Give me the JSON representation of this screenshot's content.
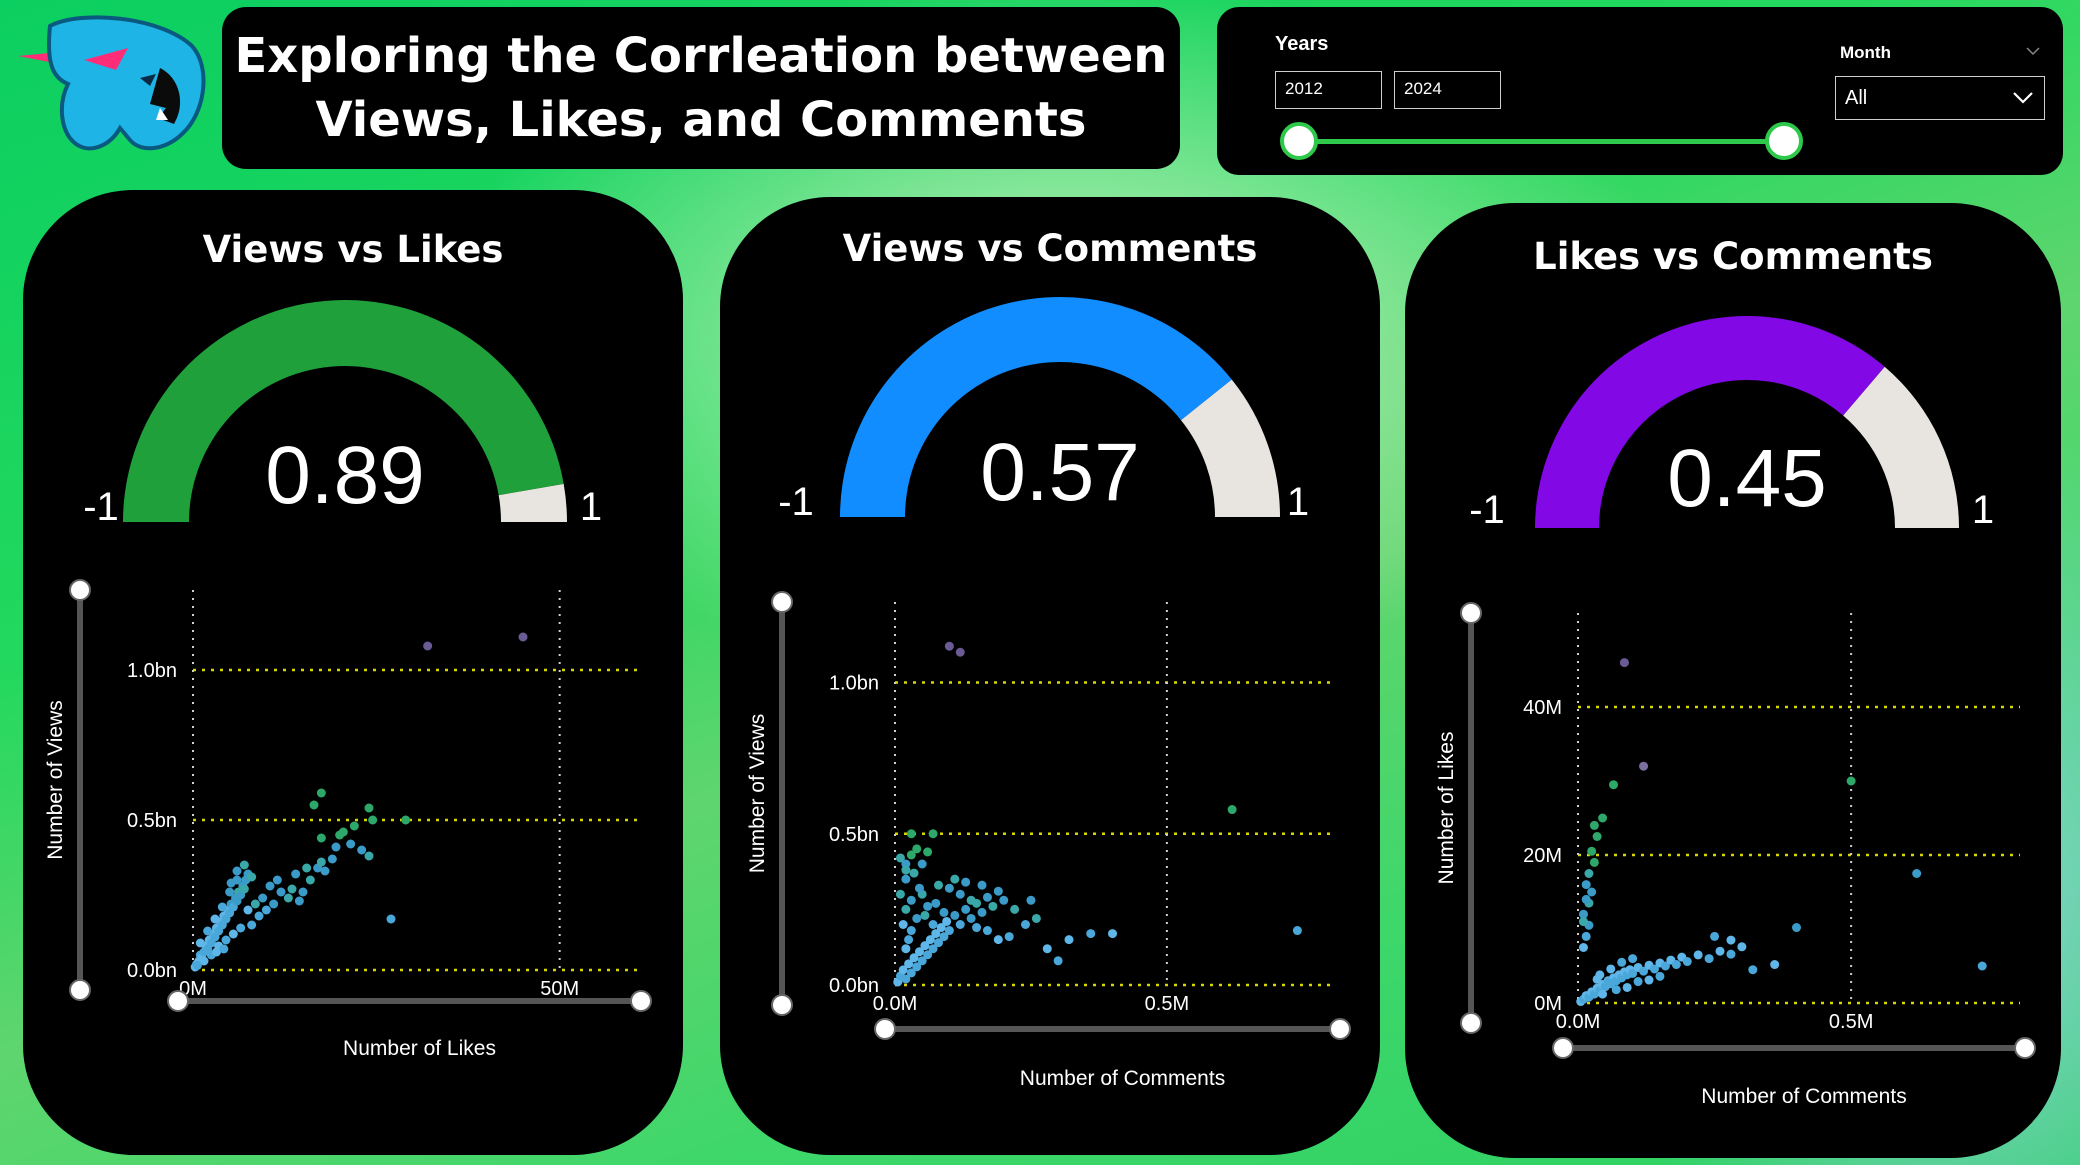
{
  "header": {
    "title_line1": "Exploring the Corrleation between",
    "title_line2": "Views, Likes, and Comments"
  },
  "filters": {
    "years_label": "Years",
    "year_from": "2012",
    "year_to": "2024",
    "month_label": "Month",
    "month_value": "All"
  },
  "colors": {
    "gauge_views_likes": "#1fa03a",
    "gauge_views_comments": "#118dff",
    "gauge_likes_comments": "#8208e6",
    "gauge_remainder": "#e8e4df",
    "gridline": "#d8d800"
  },
  "chart_data": [
    {
      "type": "gauge",
      "title": "Views vs Likes",
      "value": 0.89,
      "value_label": "0.89",
      "min": -1,
      "max": 1,
      "min_label": "-1",
      "max_label": "1"
    },
    {
      "type": "scatter",
      "xlabel": "Number of Likes",
      "ylabel": "Number of Views",
      "xlim": [
        0,
        60
      ],
      "ylim": [
        0,
        1.2
      ],
      "x_ticks": [
        {
          "v": 0,
          "label": "0M"
        },
        {
          "v": 50,
          "label": "50M"
        }
      ],
      "y_ticks": [
        {
          "v": 0,
          "label": "0.0bn"
        },
        {
          "v": 0.5,
          "label": "0.5bn"
        },
        {
          "v": 1.0,
          "label": "1.0bn"
        }
      ],
      "grid": true,
      "points": [
        [
          0.3,
          0.01
        ],
        [
          0.5,
          0.02
        ],
        [
          0.8,
          0.03
        ],
        [
          1.0,
          0.05
        ],
        [
          1.2,
          0.04
        ],
        [
          1.5,
          0.06
        ],
        [
          1.8,
          0.08
        ],
        [
          2.0,
          0.07
        ],
        [
          2.2,
          0.1
        ],
        [
          2.5,
          0.09
        ],
        [
          2.8,
          0.12
        ],
        [
          3.0,
          0.11
        ],
        [
          3.2,
          0.14
        ],
        [
          3.5,
          0.13
        ],
        [
          3.8,
          0.16
        ],
        [
          4.0,
          0.15
        ],
        [
          4.2,
          0.18
        ],
        [
          4.5,
          0.17
        ],
        [
          4.8,
          0.2
        ],
        [
          5.0,
          0.19
        ],
        [
          5.2,
          0.22
        ],
        [
          5.5,
          0.21
        ],
        [
          5.8,
          0.24
        ],
        [
          6.0,
          0.23
        ],
        [
          6.2,
          0.26
        ],
        [
          6.5,
          0.25
        ],
        [
          6.8,
          0.28
        ],
        [
          7.0,
          0.27
        ],
        [
          7.2,
          0.3
        ],
        [
          7.5,
          0.32
        ],
        [
          1.0,
          0.09
        ],
        [
          2.0,
          0.13
        ],
        [
          3.0,
          0.17
        ],
        [
          4.0,
          0.21
        ],
        [
          5.0,
          0.26
        ],
        [
          6.0,
          0.3
        ],
        [
          3.5,
          0.08
        ],
        [
          4.5,
          0.1
        ],
        [
          5.5,
          0.12
        ],
        [
          6.5,
          0.14
        ],
        [
          7.5,
          0.2
        ],
        [
          8.0,
          0.15
        ],
        [
          8.5,
          0.22
        ],
        [
          9.0,
          0.18
        ],
        [
          9.5,
          0.24
        ],
        [
          10.0,
          0.2
        ],
        [
          11.0,
          0.22
        ],
        [
          12.0,
          0.26
        ],
        [
          13.0,
          0.24
        ],
        [
          2.5,
          0.05
        ],
        [
          1.5,
          0.03
        ],
        [
          0.6,
          0.015
        ],
        [
          3.2,
          0.06
        ],
        [
          4.2,
          0.07
        ],
        [
          7.0,
          0.35
        ],
        [
          6.0,
          0.33
        ],
        [
          5.2,
          0.29
        ],
        [
          8.0,
          0.31
        ],
        [
          10.5,
          0.28
        ],
        [
          11.5,
          0.3
        ],
        [
          13.5,
          0.27
        ],
        [
          14.0,
          0.32
        ],
        [
          15.0,
          0.26
        ],
        [
          16.0,
          0.3
        ],
        [
          17.0,
          0.34
        ],
        [
          14.5,
          0.23
        ],
        [
          17.5,
          0.36
        ],
        [
          18.0,
          0.33
        ],
        [
          19.5,
          0.41
        ],
        [
          20.0,
          0.45
        ],
        [
          21.5,
          0.42
        ],
        [
          23.0,
          0.4
        ],
        [
          24.0,
          0.38
        ],
        [
          22.0,
          0.48
        ],
        [
          24.5,
          0.5
        ],
        [
          17.5,
          0.44
        ],
        [
          16.5,
          0.55
        ],
        [
          20.5,
          0.46
        ],
        [
          15.5,
          0.34
        ],
        [
          19.0,
          0.37
        ],
        [
          17.5,
          0.59
        ],
        [
          24.0,
          0.54
        ],
        [
          29.0,
          0.5
        ],
        [
          27.0,
          0.17
        ],
        [
          32.0,
          1.08
        ],
        [
          45.0,
          1.11
        ]
      ],
      "highlight_points": [
        [
          32.0,
          1.08
        ],
        [
          45.0,
          1.11
        ]
      ]
    },
    {
      "type": "gauge",
      "title": "Views vs Comments",
      "value": 0.57,
      "value_label": "0.57",
      "min": -1,
      "max": 1,
      "min_label": "-1",
      "max_label": "1"
    },
    {
      "type": "scatter",
      "xlabel": "Number of Comments",
      "ylabel": "Number of Views",
      "xlim": [
        0,
        0.8
      ],
      "ylim": [
        0,
        1.2
      ],
      "x_ticks": [
        {
          "v": 0,
          "label": "0.0M"
        },
        {
          "v": 0.5,
          "label": "0.5M"
        }
      ],
      "y_ticks": [
        {
          "v": 0,
          "label": "0.0bn"
        },
        {
          "v": 0.5,
          "label": "0.5bn"
        },
        {
          "v": 1.0,
          "label": "1.0bn"
        }
      ],
      "grid": true,
      "points": [
        [
          0.005,
          0.01
        ],
        [
          0.01,
          0.03
        ],
        [
          0.015,
          0.05
        ],
        [
          0.02,
          0.02
        ],
        [
          0.025,
          0.07
        ],
        [
          0.03,
          0.04
        ],
        [
          0.035,
          0.09
        ],
        [
          0.04,
          0.06
        ],
        [
          0.045,
          0.11
        ],
        [
          0.05,
          0.08
        ],
        [
          0.055,
          0.13
        ],
        [
          0.06,
          0.1
        ],
        [
          0.065,
          0.15
        ],
        [
          0.07,
          0.12
        ],
        [
          0.075,
          0.17
        ],
        [
          0.08,
          0.14
        ],
        [
          0.085,
          0.19
        ],
        [
          0.09,
          0.16
        ],
        [
          0.095,
          0.21
        ],
        [
          0.1,
          0.18
        ],
        [
          0.11,
          0.23
        ],
        [
          0.12,
          0.2
        ],
        [
          0.13,
          0.25
        ],
        [
          0.14,
          0.22
        ],
        [
          0.15,
          0.27
        ],
        [
          0.16,
          0.24
        ],
        [
          0.17,
          0.29
        ],
        [
          0.18,
          0.26
        ],
        [
          0.19,
          0.31
        ],
        [
          0.2,
          0.28
        ],
        [
          0.02,
          0.12
        ],
        [
          0.03,
          0.18
        ],
        [
          0.04,
          0.22
        ],
        [
          0.05,
          0.3
        ],
        [
          0.06,
          0.26
        ],
        [
          0.07,
          0.2
        ],
        [
          0.08,
          0.33
        ],
        [
          0.09,
          0.24
        ],
        [
          0.1,
          0.32
        ],
        [
          0.11,
          0.35
        ],
        [
          0.12,
          0.3
        ],
        [
          0.13,
          0.34
        ],
        [
          0.14,
          0.28
        ],
        [
          0.15,
          0.19
        ],
        [
          0.16,
          0.33
        ],
        [
          0.17,
          0.18
        ],
        [
          0.19,
          0.15
        ],
        [
          0.21,
          0.16
        ],
        [
          0.22,
          0.25
        ],
        [
          0.24,
          0.2
        ],
        [
          0.25,
          0.28
        ],
        [
          0.26,
          0.22
        ],
        [
          0.28,
          0.12
        ],
        [
          0.3,
          0.08
        ],
        [
          0.32,
          0.15
        ],
        [
          0.36,
          0.17
        ],
        [
          0.4,
          0.17
        ],
        [
          0.02,
          0.25
        ],
        [
          0.015,
          0.2
        ],
        [
          0.025,
          0.15
        ],
        [
          0.01,
          0.3
        ],
        [
          0.02,
          0.35
        ],
        [
          0.03,
          0.28
        ],
        [
          0.01,
          0.42
        ],
        [
          0.02,
          0.4
        ],
        [
          0.03,
          0.43
        ],
        [
          0.04,
          0.45
        ],
        [
          0.05,
          0.4
        ],
        [
          0.06,
          0.44
        ],
        [
          0.035,
          0.37
        ],
        [
          0.03,
          0.5
        ],
        [
          0.07,
          0.5
        ],
        [
          0.02,
          0.38
        ],
        [
          0.045,
          0.32
        ],
        [
          0.62,
          0.58
        ],
        [
          0.74,
          0.18
        ],
        [
          0.1,
          1.12
        ],
        [
          0.12,
          1.1
        ],
        [
          0.055,
          0.23
        ],
        [
          0.075,
          0.27
        ]
      ],
      "highlight_points": [
        [
          0.1,
          1.12
        ],
        [
          0.12,
          1.1
        ]
      ]
    },
    {
      "type": "gauge",
      "title": "Likes vs Comments",
      "value": 0.45,
      "value_label": "0.45",
      "min": -1,
      "max": 1,
      "min_label": "-1",
      "max_label": "1"
    },
    {
      "type": "scatter",
      "xlabel": "Number of Comments",
      "ylabel": "Number of Likes",
      "xlim": [
        0,
        0.8
      ],
      "ylim": [
        0,
        50
      ],
      "x_ticks": [
        {
          "v": 0,
          "label": "0.0M"
        },
        {
          "v": 0.5,
          "label": "0.5M"
        }
      ],
      "y_ticks": [
        {
          "v": 0,
          "label": "0M"
        },
        {
          "v": 20,
          "label": "20M"
        },
        {
          "v": 40,
          "label": "40M"
        }
      ],
      "grid": true,
      "points": [
        [
          0.005,
          0.2
        ],
        [
          0.01,
          0.5
        ],
        [
          0.015,
          1.0
        ],
        [
          0.02,
          0.8
        ],
        [
          0.025,
          1.5
        ],
        [
          0.03,
          1.2
        ],
        [
          0.035,
          2.0
        ],
        [
          0.04,
          1.7
        ],
        [
          0.045,
          2.5
        ],
        [
          0.05,
          2.2
        ],
        [
          0.055,
          3.0
        ],
        [
          0.06,
          2.6
        ],
        [
          0.065,
          3.4
        ],
        [
          0.07,
          3.0
        ],
        [
          0.075,
          3.8
        ],
        [
          0.08,
          3.4
        ],
        [
          0.085,
          4.2
        ],
        [
          0.09,
          3.8
        ],
        [
          0.095,
          4.5
        ],
        [
          0.1,
          4.0
        ],
        [
          0.11,
          4.8
        ],
        [
          0.12,
          4.3
        ],
        [
          0.13,
          5.1
        ],
        [
          0.14,
          4.6
        ],
        [
          0.15,
          5.4
        ],
        [
          0.16,
          5.0
        ],
        [
          0.17,
          5.8
        ],
        [
          0.18,
          5.2
        ],
        [
          0.19,
          6.2
        ],
        [
          0.2,
          5.6
        ],
        [
          0.22,
          6.5
        ],
        [
          0.24,
          6.0
        ],
        [
          0.26,
          7.0
        ],
        [
          0.28,
          6.6
        ],
        [
          0.3,
          7.6
        ],
        [
          0.32,
          4.5
        ],
        [
          0.36,
          5.2
        ],
        [
          0.4,
          10.2
        ],
        [
          0.28,
          8.5
        ],
        [
          0.25,
          9.0
        ],
        [
          0.045,
          1.2
        ],
        [
          0.07,
          1.8
        ],
        [
          0.09,
          2.1
        ],
        [
          0.11,
          2.9
        ],
        [
          0.13,
          3.1
        ],
        [
          0.15,
          3.6
        ],
        [
          0.06,
          4.6
        ],
        [
          0.08,
          5.5
        ],
        [
          0.04,
          3.8
        ],
        [
          0.1,
          6.0
        ],
        [
          0.01,
          7.5
        ],
        [
          0.015,
          9.0
        ],
        [
          0.02,
          10.5
        ],
        [
          0.01,
          12.0
        ],
        [
          0.02,
          13.5
        ],
        [
          0.025,
          15.0
        ],
        [
          0.015,
          16.0
        ],
        [
          0.02,
          17.5
        ],
        [
          0.03,
          19.0
        ],
        [
          0.025,
          20.5
        ],
        [
          0.035,
          22.5
        ],
        [
          0.03,
          24.0
        ],
        [
          0.045,
          25.0
        ],
        [
          0.065,
          29.5
        ],
        [
          0.12,
          32.0
        ],
        [
          0.5,
          30.0
        ],
        [
          0.01,
          11.0
        ],
        [
          0.015,
          14.0
        ],
        [
          0.035,
          3.2
        ],
        [
          0.055,
          2.8
        ],
        [
          0.62,
          17.5
        ],
        [
          0.74,
          5.0
        ],
        [
          0.085,
          46.0
        ]
      ],
      "highlight_points": [
        [
          0.085,
          46.0
        ]
      ]
    }
  ]
}
